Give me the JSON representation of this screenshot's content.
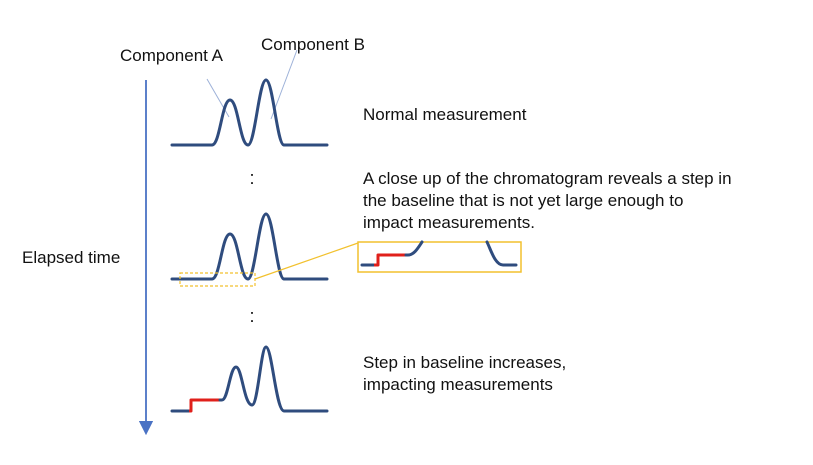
{
  "labels": {
    "component_a": "Component A",
    "component_b": "Component B",
    "elapsed_time": "Elapsed time"
  },
  "stages": [
    {
      "id": "normal",
      "text_lines": [
        "Normal measurement"
      ]
    },
    {
      "id": "small-step",
      "text_lines": [
        "A close up of the chromatogram reveals a step in",
        "the baseline that is not yet large enough to",
        "impact measurements."
      ]
    },
    {
      "id": "large-step",
      "text_lines": [
        "Step in baseline increases,",
        "impacting measurements"
      ]
    }
  ],
  "separator": ":",
  "colors": {
    "peak_line": "#2f4c7e",
    "step_line": "#e0201b",
    "callout": "#f2c12e",
    "time_arrow": "#4a72c4",
    "leader_line": "#9db1d8",
    "text": "#111111"
  }
}
